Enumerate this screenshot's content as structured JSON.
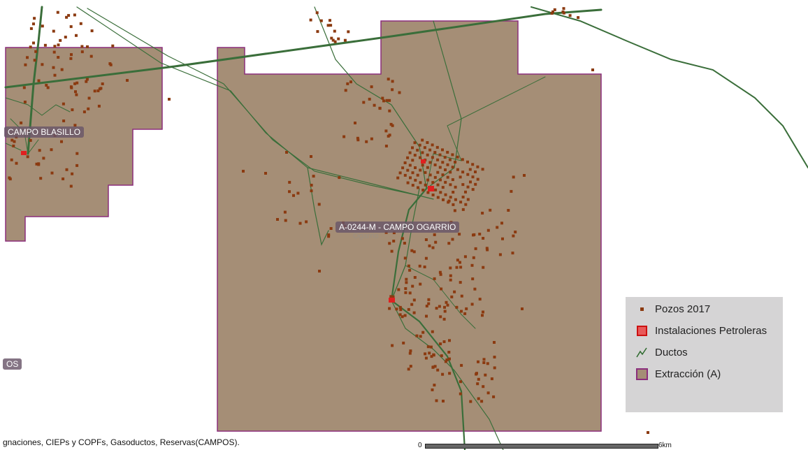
{
  "map": {
    "fields": [
      {
        "label": "CAMPO BLASILLO"
      },
      {
        "label": "A-0244-M - CAMPO OGARRIO"
      },
      {
        "label": "OS"
      }
    ],
    "faint_label": "Ogarrio"
  },
  "legend": {
    "items": [
      {
        "label": "Pozos 2017",
        "icon": "well-square-icon",
        "color": "#8b3a10"
      },
      {
        "label": "Instalaciones Petroleras",
        "icon": "facility-square-icon",
        "color": "#e85a5a"
      },
      {
        "label": "Ductos",
        "icon": "pipeline-line-icon",
        "color": "#2d6a2d"
      },
      {
        "label": "Extracción (A)",
        "icon": "extraction-area-icon",
        "color": "#a58e76"
      }
    ]
  },
  "attribution": "gnaciones, CIEPs y COPFs, Gasoductos, Reservas(CAMPOS).",
  "scale": {
    "start": "0",
    "end": "6km"
  },
  "colors": {
    "extraction_fill": "#a58e76",
    "extraction_stroke": "#8b2e7c",
    "pipeline": "#3a6e3a",
    "well": "#8b3a10",
    "facility": "#e02020"
  }
}
